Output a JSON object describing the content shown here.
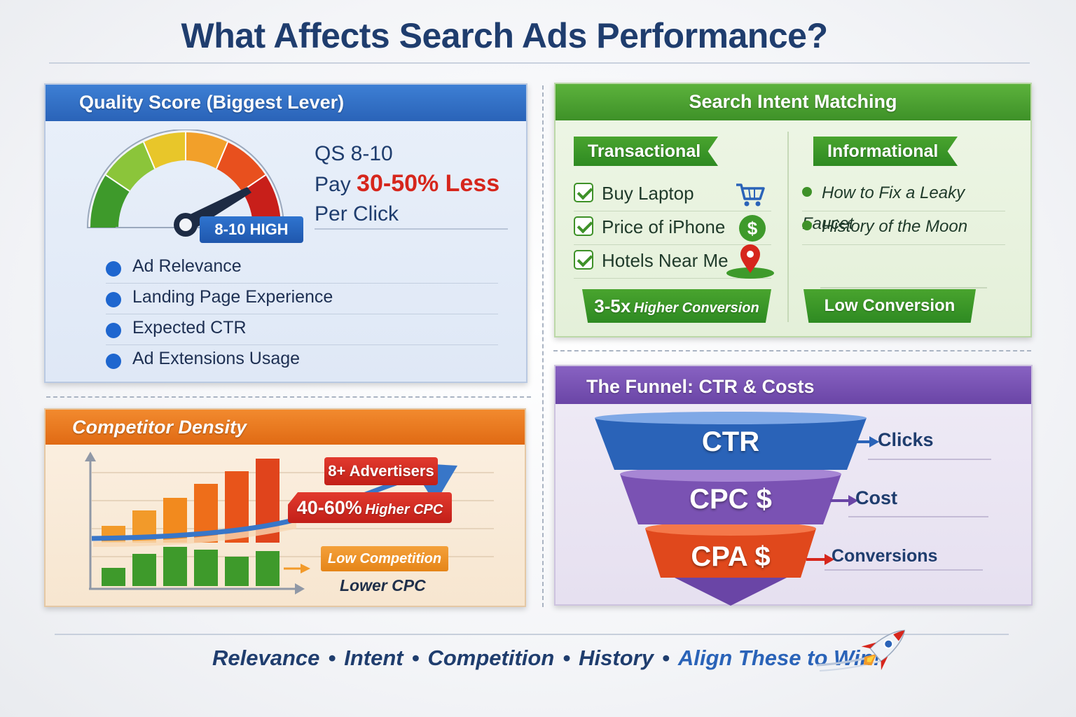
{
  "title": "What Affects Search Ads Performance?",
  "quality_score": {
    "header": "Quality Score (Biggest Lever)",
    "gauge_badge": "8-10 HIGH",
    "line1": "QS 8-10",
    "line2_prefix": "Pay",
    "line2_highlight": "30-50% Less",
    "line3": "Per Click",
    "factors": [
      "Ad Relevance",
      "Landing Page Experience",
      "Expected CTR",
      "Ad Extensions Usage"
    ],
    "colors": {
      "header": "#2a63b8",
      "highlight": "#d6261c"
    }
  },
  "search_intent": {
    "header": "Search Intent Matching",
    "transactional": {
      "label": "Transactional",
      "items": [
        {
          "text": "Buy Laptop",
          "icon": "shopping-cart-icon"
        },
        {
          "text": "Price of iPhone",
          "icon": "dollar-coin-icon"
        },
        {
          "text": "Hotels Near Me",
          "icon": "map-pin-icon"
        }
      ],
      "result_bold": "3-5x",
      "result_rest": "Higher Conversion"
    },
    "informational": {
      "label": "Informational",
      "items": [
        "How to Fix a Leaky Faucet",
        "History of the Moon"
      ],
      "result": "Low Conversion"
    },
    "colors": {
      "header": "#3e9128"
    }
  },
  "competitor_density": {
    "header": "Competitor Density",
    "high_tag": "8+ Advertisers",
    "high_result_bold": "40-60%",
    "high_result_rest": "Higher CPC",
    "low_tag": "Low Competition",
    "low_result": "Lower CPC",
    "colors": {
      "header": "#e06a14",
      "high": "#e23a2e",
      "low": "#3e9128"
    }
  },
  "funnel": {
    "header": "The Funnel: CTR & Costs",
    "stages": [
      {
        "label": "CTR",
        "outcome": "Clicks",
        "color": "#2a63b8"
      },
      {
        "label": "CPC $",
        "outcome": "Cost",
        "color": "#7a52b3"
      },
      {
        "label": "CPA $",
        "outcome": "Conversions",
        "color": "#e0481c"
      }
    ]
  },
  "footer": {
    "items": [
      "Relevance",
      "Intent",
      "Competition",
      "History"
    ],
    "separator": "•",
    "cta": "Align These to Win!",
    "icon": "rocket-icon"
  }
}
